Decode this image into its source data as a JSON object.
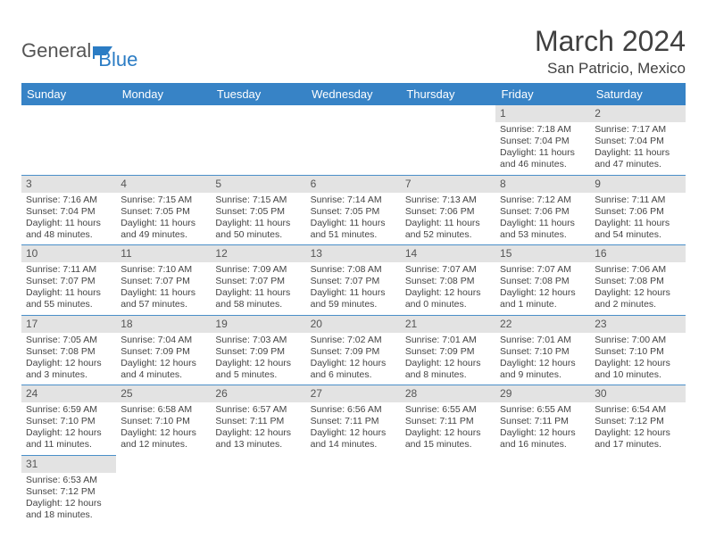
{
  "logo": {
    "part1": "General",
    "part2": "Blue"
  },
  "title": "March 2024",
  "location": "San Patricio, Mexico",
  "weekdays": [
    "Sunday",
    "Monday",
    "Tuesday",
    "Wednesday",
    "Thursday",
    "Friday",
    "Saturday"
  ],
  "colors": {
    "header_bg": "#3783c6",
    "header_text": "#ffffff",
    "daynum_bg": "#e3e3e3",
    "row_border": "#4a8fc9",
    "logo_blue": "#2b7cc4"
  },
  "grid": [
    [
      null,
      null,
      null,
      null,
      null,
      {
        "n": "1",
        "sr": "Sunrise: 7:18 AM",
        "ss": "Sunset: 7:04 PM",
        "dl": "Daylight: 11 hours and 46 minutes."
      },
      {
        "n": "2",
        "sr": "Sunrise: 7:17 AM",
        "ss": "Sunset: 7:04 PM",
        "dl": "Daylight: 11 hours and 47 minutes."
      }
    ],
    [
      {
        "n": "3",
        "sr": "Sunrise: 7:16 AM",
        "ss": "Sunset: 7:04 PM",
        "dl": "Daylight: 11 hours and 48 minutes."
      },
      {
        "n": "4",
        "sr": "Sunrise: 7:15 AM",
        "ss": "Sunset: 7:05 PM",
        "dl": "Daylight: 11 hours and 49 minutes."
      },
      {
        "n": "5",
        "sr": "Sunrise: 7:15 AM",
        "ss": "Sunset: 7:05 PM",
        "dl": "Daylight: 11 hours and 50 minutes."
      },
      {
        "n": "6",
        "sr": "Sunrise: 7:14 AM",
        "ss": "Sunset: 7:05 PM",
        "dl": "Daylight: 11 hours and 51 minutes."
      },
      {
        "n": "7",
        "sr": "Sunrise: 7:13 AM",
        "ss": "Sunset: 7:06 PM",
        "dl": "Daylight: 11 hours and 52 minutes."
      },
      {
        "n": "8",
        "sr": "Sunrise: 7:12 AM",
        "ss": "Sunset: 7:06 PM",
        "dl": "Daylight: 11 hours and 53 minutes."
      },
      {
        "n": "9",
        "sr": "Sunrise: 7:11 AM",
        "ss": "Sunset: 7:06 PM",
        "dl": "Daylight: 11 hours and 54 minutes."
      }
    ],
    [
      {
        "n": "10",
        "sr": "Sunrise: 7:11 AM",
        "ss": "Sunset: 7:07 PM",
        "dl": "Daylight: 11 hours and 55 minutes."
      },
      {
        "n": "11",
        "sr": "Sunrise: 7:10 AM",
        "ss": "Sunset: 7:07 PM",
        "dl": "Daylight: 11 hours and 57 minutes."
      },
      {
        "n": "12",
        "sr": "Sunrise: 7:09 AM",
        "ss": "Sunset: 7:07 PM",
        "dl": "Daylight: 11 hours and 58 minutes."
      },
      {
        "n": "13",
        "sr": "Sunrise: 7:08 AM",
        "ss": "Sunset: 7:07 PM",
        "dl": "Daylight: 11 hours and 59 minutes."
      },
      {
        "n": "14",
        "sr": "Sunrise: 7:07 AM",
        "ss": "Sunset: 7:08 PM",
        "dl": "Daylight: 12 hours and 0 minutes."
      },
      {
        "n": "15",
        "sr": "Sunrise: 7:07 AM",
        "ss": "Sunset: 7:08 PM",
        "dl": "Daylight: 12 hours and 1 minute."
      },
      {
        "n": "16",
        "sr": "Sunrise: 7:06 AM",
        "ss": "Sunset: 7:08 PM",
        "dl": "Daylight: 12 hours and 2 minutes."
      }
    ],
    [
      {
        "n": "17",
        "sr": "Sunrise: 7:05 AM",
        "ss": "Sunset: 7:08 PM",
        "dl": "Daylight: 12 hours and 3 minutes."
      },
      {
        "n": "18",
        "sr": "Sunrise: 7:04 AM",
        "ss": "Sunset: 7:09 PM",
        "dl": "Daylight: 12 hours and 4 minutes."
      },
      {
        "n": "19",
        "sr": "Sunrise: 7:03 AM",
        "ss": "Sunset: 7:09 PM",
        "dl": "Daylight: 12 hours and 5 minutes."
      },
      {
        "n": "20",
        "sr": "Sunrise: 7:02 AM",
        "ss": "Sunset: 7:09 PM",
        "dl": "Daylight: 12 hours and 6 minutes."
      },
      {
        "n": "21",
        "sr": "Sunrise: 7:01 AM",
        "ss": "Sunset: 7:09 PM",
        "dl": "Daylight: 12 hours and 8 minutes."
      },
      {
        "n": "22",
        "sr": "Sunrise: 7:01 AM",
        "ss": "Sunset: 7:10 PM",
        "dl": "Daylight: 12 hours and 9 minutes."
      },
      {
        "n": "23",
        "sr": "Sunrise: 7:00 AM",
        "ss": "Sunset: 7:10 PM",
        "dl": "Daylight: 12 hours and 10 minutes."
      }
    ],
    [
      {
        "n": "24",
        "sr": "Sunrise: 6:59 AM",
        "ss": "Sunset: 7:10 PM",
        "dl": "Daylight: 12 hours and 11 minutes."
      },
      {
        "n": "25",
        "sr": "Sunrise: 6:58 AM",
        "ss": "Sunset: 7:10 PM",
        "dl": "Daylight: 12 hours and 12 minutes."
      },
      {
        "n": "26",
        "sr": "Sunrise: 6:57 AM",
        "ss": "Sunset: 7:11 PM",
        "dl": "Daylight: 12 hours and 13 minutes."
      },
      {
        "n": "27",
        "sr": "Sunrise: 6:56 AM",
        "ss": "Sunset: 7:11 PM",
        "dl": "Daylight: 12 hours and 14 minutes."
      },
      {
        "n": "28",
        "sr": "Sunrise: 6:55 AM",
        "ss": "Sunset: 7:11 PM",
        "dl": "Daylight: 12 hours and 15 minutes."
      },
      {
        "n": "29",
        "sr": "Sunrise: 6:55 AM",
        "ss": "Sunset: 7:11 PM",
        "dl": "Daylight: 12 hours and 16 minutes."
      },
      {
        "n": "30",
        "sr": "Sunrise: 6:54 AM",
        "ss": "Sunset: 7:12 PM",
        "dl": "Daylight: 12 hours and 17 minutes."
      }
    ],
    [
      {
        "n": "31",
        "sr": "Sunrise: 6:53 AM",
        "ss": "Sunset: 7:12 PM",
        "dl": "Daylight: 12 hours and 18 minutes."
      },
      null,
      null,
      null,
      null,
      null,
      null
    ]
  ]
}
